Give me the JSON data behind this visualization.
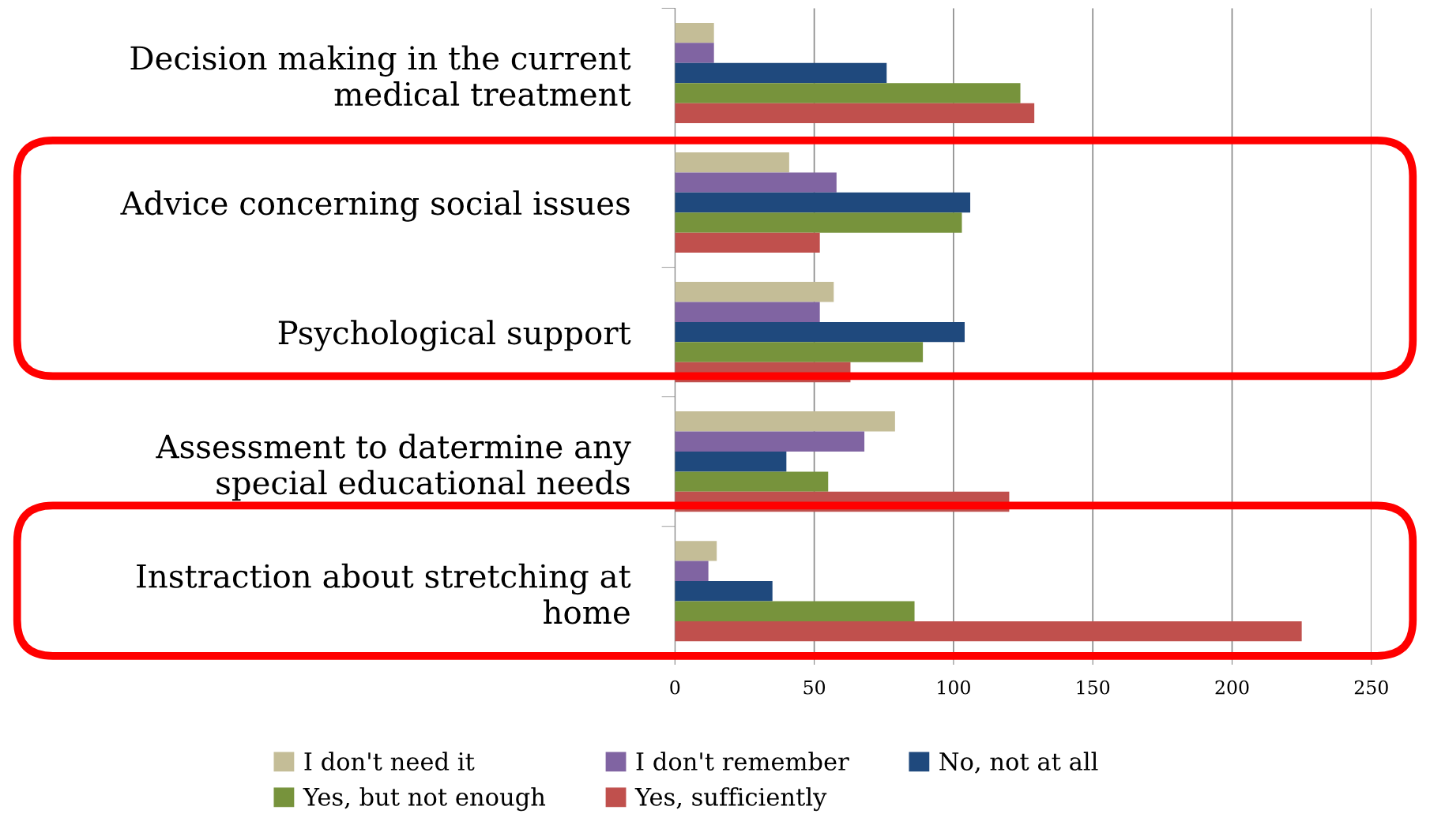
{
  "chart_data": {
    "type": "bar",
    "orientation": "horizontal",
    "categories": [
      "Decision making in the current\nmedical treatment",
      "Advice concerning social issues",
      "Psychological support",
      "Assessment to datermine any\nspecial educational needs",
      "Instraction about stretching at\nhome"
    ],
    "series": [
      {
        "name": "I don't need it",
        "color": "#c4bd97",
        "values": [
          14,
          41,
          57,
          79,
          15
        ]
      },
      {
        "name": "I don't remember",
        "color": "#8064a2",
        "values": [
          14,
          58,
          52,
          68,
          12
        ]
      },
      {
        "name": "No, not at all",
        "color": "#1f497d",
        "values": [
          76,
          106,
          104,
          40,
          35
        ]
      },
      {
        "name": "Yes, but not enough",
        "color": "#77933c",
        "values": [
          124,
          103,
          89,
          55,
          86
        ]
      },
      {
        "name": "Yes, sufficiently",
        "color": "#c0504d",
        "values": [
          129,
          52,
          63,
          120,
          225
        ]
      }
    ],
    "xlim": [
      0,
      250
    ],
    "xticks": [
      0,
      50,
      100,
      150,
      200,
      250
    ],
    "grid": "x",
    "legend": "bottom"
  }
}
